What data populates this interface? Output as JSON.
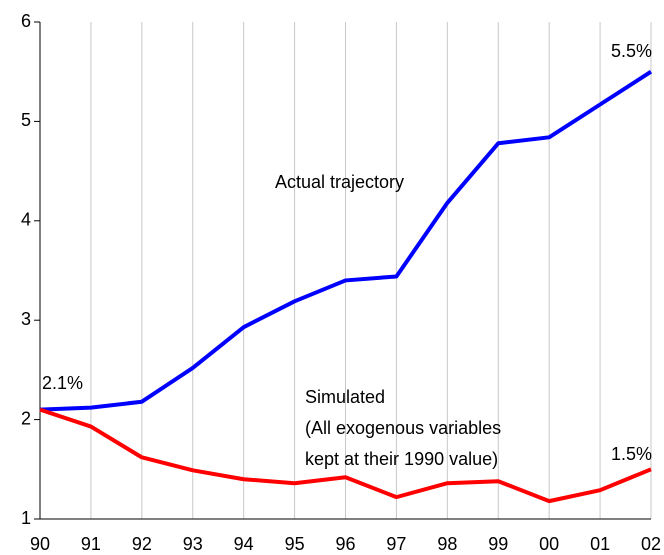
{
  "chart_data": {
    "type": "line",
    "categories": [
      "90",
      "91",
      "92",
      "93",
      "94",
      "95",
      "96",
      "97",
      "98",
      "99",
      "00",
      "01",
      "02"
    ],
    "series": [
      {
        "name": "Actual trajectory",
        "color": "#0000ff",
        "values": [
          2.1,
          2.12,
          2.18,
          2.52,
          2.93,
          3.19,
          3.4,
          3.44,
          4.18,
          4.78,
          4.84,
          5.17,
          5.5
        ],
        "value_labels": [
          "2.1%",
          null,
          null,
          null,
          null,
          null,
          null,
          null,
          null,
          null,
          null,
          null,
          "5.5%"
        ]
      },
      {
        "name": "Simulated",
        "annotation": [
          "(All exogenous variables",
          "kept at their 1990 value)"
        ],
        "color": "#ff0000",
        "values": [
          2.1,
          1.93,
          1.62,
          1.49,
          1.4,
          1.36,
          1.42,
          1.22,
          1.36,
          1.38,
          1.18,
          1.29,
          1.5
        ],
        "value_labels": [
          null,
          null,
          null,
          null,
          null,
          null,
          null,
          null,
          null,
          null,
          null,
          null,
          "1.5%"
        ]
      }
    ],
    "ylim": [
      1,
      6
    ],
    "yticks": [
      1,
      2,
      3,
      4,
      5,
      6
    ],
    "grid": true
  }
}
